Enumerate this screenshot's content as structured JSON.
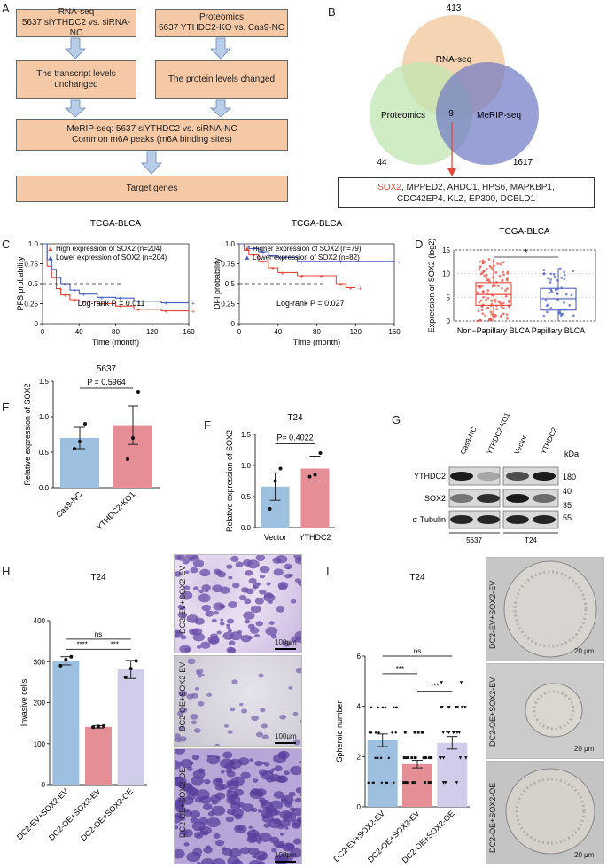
{
  "panels": {
    "A": "A",
    "B": "B",
    "C": "C",
    "D": "D",
    "E": "E",
    "F": "F",
    "G": "G",
    "H": "H",
    "I": "I"
  },
  "flow": {
    "rnaseq_title": "RNA-seq",
    "rnaseq_sub": "5637 siYTHDC2 vs. siRNA-NC",
    "prot_title": "Proteomics",
    "prot_sub": "5637 YTHDC2-KO vs. Cas9-NC",
    "transcript_1": "The transcript levels",
    "transcript_2": "unchanged",
    "protein": "The protein levels changed",
    "merip_1": "MeRIP-seq: 5637 siYTHDC2 vs. siRNA-NC",
    "merip_2": "Common m6A peaks (m6A binding sites)",
    "target": "Target genes"
  },
  "venn": {
    "rna_label": "RNA-seq",
    "prot_label": "Proteomics",
    "merip_label": "MeRIP-seq",
    "rna_count": "413",
    "prot_count": "44",
    "merip_count": "1617",
    "overlap": "9",
    "genes_highlight": "SOX2",
    "genes_line1": ", MPPED2, AHDC1, HPS6, MAPKBP1,",
    "genes_line2": "CDC42EP4, KLZ, EP300, DCBLD1"
  },
  "colors": {
    "red": "#e8483a",
    "blue": "#4a5fc1",
    "venn_rna": "#f2c9a0",
    "venn_prot": "#bfe6b0",
    "venn_merip": "#6e78c4",
    "bar_blue": "#9dbfe0",
    "bar_pink": "#e58e96",
    "bar_lav": "#cfcdea"
  },
  "chart_data": [
    {
      "type": "line",
      "id": "C1",
      "title": "TCGA-BLCA",
      "xlabel": "Time (month)",
      "ylabel": "PFS probability",
      "xlim": [
        0,
        160
      ],
      "ylim": [
        0,
        1
      ],
      "xticks": [
        "0",
        "40",
        "80",
        "120",
        "160"
      ],
      "yticks": [
        "0",
        "0.25",
        "0.5",
        "0.75",
        "1.0"
      ],
      "series": [
        {
          "name": "High expression of SOX2 (n=204)",
          "x": [
            0,
            5,
            10,
            15,
            20,
            30,
            40,
            60,
            80,
            100,
            130,
            160
          ],
          "y": [
            1.0,
            0.72,
            0.58,
            0.44,
            0.36,
            0.3,
            0.28,
            0.25,
            0.22,
            0.18,
            0.16,
            0.16
          ]
        },
        {
          "name": "Lower expression of SOX2 (n=204)",
          "x": [
            0,
            5,
            10,
            15,
            20,
            30,
            40,
            60,
            80,
            100,
            130,
            160
          ],
          "y": [
            1.0,
            0.8,
            0.68,
            0.58,
            0.5,
            0.42,
            0.37,
            0.33,
            0.32,
            0.28,
            0.26,
            0.26
          ]
        }
      ],
      "legend_high": "High expression of SOX2 (n=204)",
      "legend_low": "Lower expression of SOX2 (n=204)",
      "stat": "Log-rank P = 0.011"
    },
    {
      "type": "line",
      "id": "C2",
      "title": "TCGA-BLCA",
      "xlabel": "Time (month)",
      "ylabel": "DFI probability",
      "xlim": [
        0,
        160
      ],
      "ylim": [
        0,
        1
      ],
      "xticks": [
        "0",
        "40",
        "80",
        "120",
        "160"
      ],
      "yticks": [
        "0",
        "0.25",
        "0.5",
        "0.75",
        "1.0"
      ],
      "series": [
        {
          "name": "Higher expression of SOX2 (n=79)",
          "x": [
            0,
            5,
            10,
            20,
            30,
            40,
            60,
            80,
            100,
            110,
            120
          ],
          "y": [
            1.0,
            0.92,
            0.86,
            0.78,
            0.7,
            0.64,
            0.6,
            0.6,
            0.5,
            0.45,
            0.45
          ]
        },
        {
          "name": "Lower expression of SOX2 (n=82)",
          "x": [
            0,
            5,
            10,
            20,
            30,
            40,
            60,
            100,
            160
          ],
          "y": [
            1.0,
            0.97,
            0.94,
            0.9,
            0.85,
            0.83,
            0.78,
            0.78,
            0.78
          ]
        }
      ],
      "legend_high": "Higher expression of SOX2 (n=79)",
      "legend_low": "Lower expression of SOX2 (n=82)",
      "stat": "Log-rank P = 0.027"
    },
    {
      "type": "box",
      "id": "D",
      "title": "TCGA-BLCA",
      "ylabel": "Expression of SOX2 (log2)",
      "categories": [
        "Non−Papillary BLCA",
        "Papillary BLCA"
      ],
      "ylim": [
        0,
        15
      ],
      "yticks": [
        "0",
        "5",
        "10",
        "15"
      ],
      "boxes": [
        {
          "q1": 3.3,
          "median": 5.6,
          "q3": 8.1,
          "min": 0,
          "max": 13.1
        },
        {
          "q1": 2.3,
          "median": 4.7,
          "q3": 6.9,
          "min": 0,
          "max": 11.2
        }
      ],
      "sig": "*"
    },
    {
      "type": "bar",
      "id": "E",
      "title": "5637",
      "ylabel": "Relative expression of SOX2",
      "categories": [
        "Cas9-NC",
        "YTHDC2-KO1"
      ],
      "values": [
        0.7,
        0.88
      ],
      "errors": [
        0.15,
        0.27
      ],
      "ylim": [
        0,
        1.5
      ],
      "yticks": [
        "0.0",
        "0.5",
        "1.0",
        "1.5"
      ],
      "stat": "P = 0.5964"
    },
    {
      "type": "bar",
      "id": "F",
      "title": "T24",
      "ylabel": "Relative expression of SOX2",
      "categories": [
        "Vector",
        "YTHDC2"
      ],
      "values": [
        0.66,
        0.95
      ],
      "errors": [
        0.22,
        0.2
      ],
      "ylim": [
        0,
        1.5
      ],
      "yticks": [
        "0.0",
        "0.5",
        "1.0",
        "1.5"
      ],
      "stat": "P= 0.4022"
    },
    {
      "type": "bar",
      "id": "H",
      "title": "T24",
      "ylabel": "Invasive cells",
      "categories": [
        "DC2-EV+SOX2-EV",
        "DC2-OE+SOX2-EV",
        "DC2-OE+SOX2-OE"
      ],
      "values": [
        302,
        141,
        281
      ],
      "errors": [
        10,
        3,
        22
      ],
      "ylim": [
        0,
        400
      ],
      "yticks": [
        "0",
        "100",
        "200",
        "300",
        "400"
      ],
      "sig": [
        "****",
        "***",
        "ns"
      ]
    },
    {
      "type": "bar",
      "id": "I",
      "title": "T24",
      "ylabel": "Spheroid number",
      "categories": [
        "DC2-EV+SOX2-EV",
        "DC2-OE+SOX2-EV",
        "DC2-OE+SOX2-OE"
      ],
      "values": [
        2.65,
        1.7,
        2.55
      ],
      "errors": [
        0.25,
        0.15,
        0.25
      ],
      "ylim": [
        0,
        6
      ],
      "yticks": [
        "0",
        "2",
        "4",
        "6"
      ],
      "sig": [
        "***",
        "***",
        "ns"
      ]
    }
  ],
  "western": {
    "cols": [
      "Cas9-NC",
      "YTHDC2-KO1",
      "Vector",
      "YTHDC2"
    ],
    "rows": [
      "YTHDC2",
      "SOX2",
      "α-Tubulin"
    ],
    "kda": "kDa",
    "mw": [
      "180",
      "40",
      "35",
      "55"
    ],
    "group1": "5637",
    "group2": "T24"
  },
  "micro_h": {
    "labels": [
      "DC2-EV+SOX2-EV",
      "DC2-OE+SOX2-EV",
      "DC2-OE+SOX2-OE"
    ],
    "scale": "100μm"
  },
  "micro_i": {
    "labels": [
      "DC2-EV+SOX2-EV",
      "DC2-OE+SOX2-EV",
      "DC2-OE+SOX2-OE"
    ],
    "scale": "20 μm"
  }
}
